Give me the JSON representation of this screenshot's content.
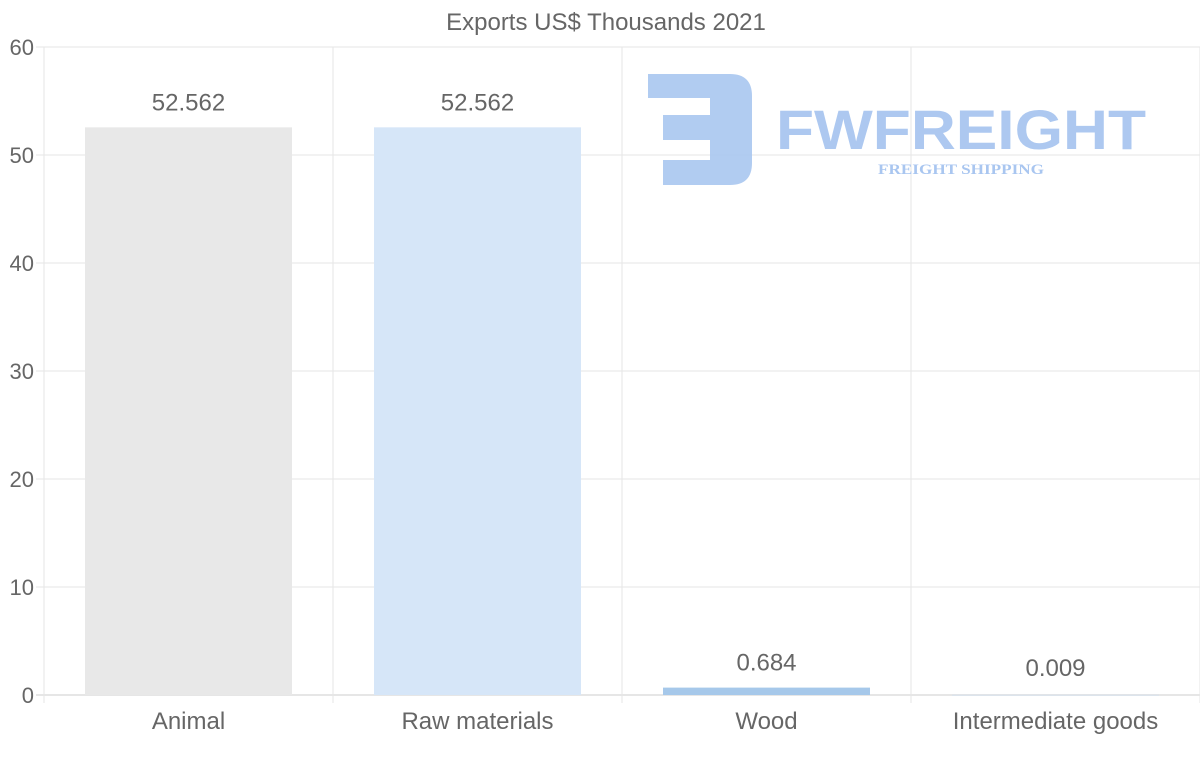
{
  "chart_data": {
    "type": "bar",
    "title": "Exports US$ Thousands 2021",
    "categories": [
      "Animal",
      "Raw materials",
      "Wood",
      "Intermediate goods"
    ],
    "values": [
      52.562,
      52.562,
      0.684,
      0.009
    ],
    "data_labels": [
      "52.562",
      "52.562",
      "0.684",
      "0.009"
    ],
    "colors": [
      "#e8e8e8",
      "#d6e6f8",
      "#a6c8ea",
      "#9fc3e8"
    ],
    "xlabel": "",
    "ylabel": "",
    "ylim": [
      0,
      60
    ],
    "yticks": [
      0,
      10,
      20,
      30,
      40,
      50,
      60
    ],
    "grid": true,
    "legend": "none"
  },
  "watermark": {
    "brand": "FWFREIGHT",
    "tagline": "FREIGHT SHIPPING",
    "color": "#a9c6f0"
  }
}
